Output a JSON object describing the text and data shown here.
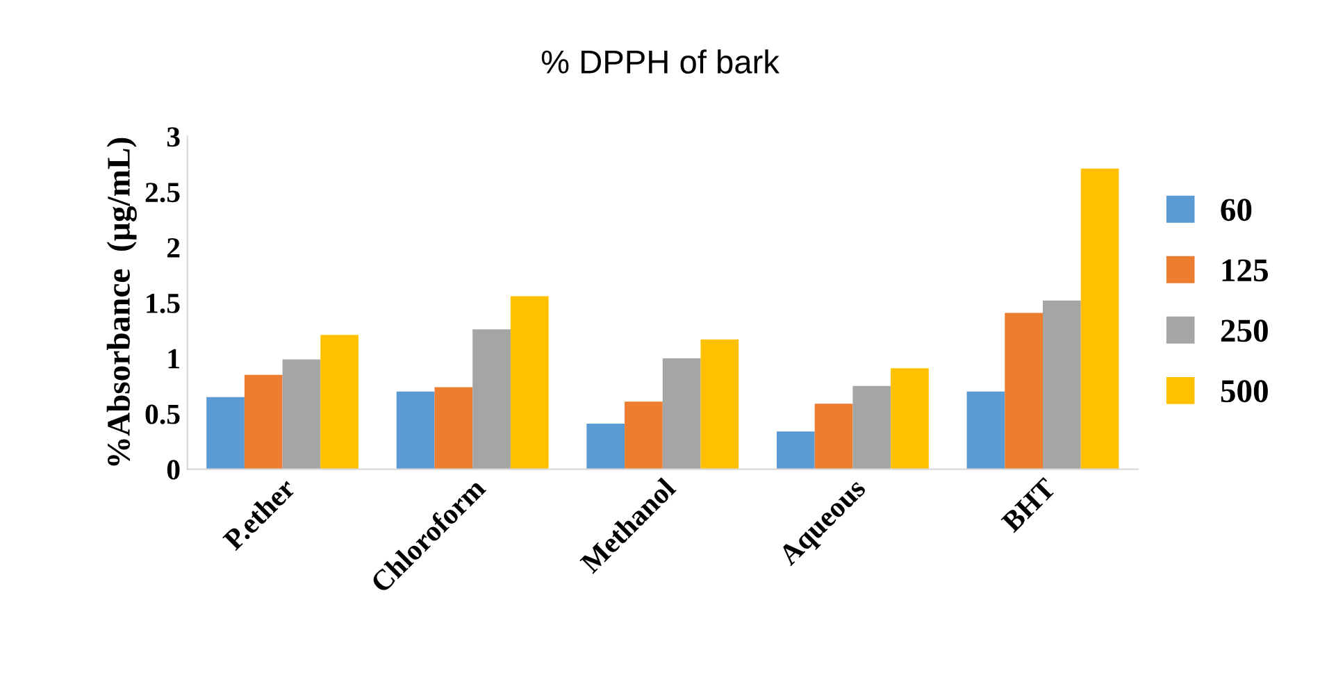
{
  "chart_data": {
    "type": "bar",
    "title": "% DPPH of bark",
    "ylabel": "%Absorbance  (µg/mL)",
    "categories": [
      "P.ether",
      "Chloroform",
      "Methanol",
      "Aqueous",
      "BHT"
    ],
    "series": [
      {
        "name": "60",
        "color": "#5b9bd5",
        "values": [
          0.65,
          0.7,
          0.41,
          0.34,
          0.7
        ]
      },
      {
        "name": "125",
        "color": "#ed7d31",
        "values": [
          0.85,
          0.74,
          0.61,
          0.59,
          1.41
        ]
      },
      {
        "name": "250",
        "color": "#a5a5a5",
        "values": [
          0.99,
          1.26,
          1.0,
          0.75,
          1.52
        ]
      },
      {
        "name": "500",
        "color": "#ffc000",
        "values": [
          1.21,
          1.56,
          1.17,
          0.91,
          2.71
        ]
      }
    ],
    "ylim": [
      0,
      3
    ],
    "yticks": [
      0,
      0.5,
      1,
      1.5,
      2,
      2.5,
      3
    ],
    "grid": false,
    "legend": "right"
  }
}
